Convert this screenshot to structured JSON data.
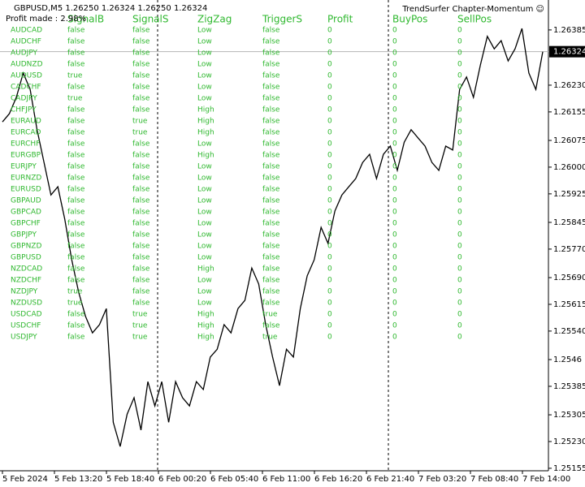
{
  "header": {
    "symbol_line": "GBPUSD,M5  1.26250 1.26324 1.26250 1.26324",
    "profit_line": "Profit made : 2.98%",
    "indicator": "TrendSurfer Chapter-Momentum ☺"
  },
  "table": {
    "columns": [
      "SignalB",
      "SignalS",
      "ZigZag",
      "TriggerS",
      "Profit",
      "BuyPos",
      "SellPos"
    ],
    "rows": [
      [
        "AUDCAD",
        "false",
        "false",
        "Low",
        "false",
        0,
        0,
        0
      ],
      [
        "AUDCHF",
        "false",
        "false",
        "Low",
        "false",
        0,
        0,
        0
      ],
      [
        "AUDJPY",
        "false",
        "false",
        "Low",
        "false",
        0,
        0,
        0
      ],
      [
        "AUDNZD",
        "false",
        "false",
        "Low",
        "false",
        0,
        0,
        0
      ],
      [
        "AUDUSD",
        "true",
        "false",
        "Low",
        "false",
        0,
        0,
        0
      ],
      [
        "CADCHF",
        "false",
        "false",
        "Low",
        "false",
        0,
        0,
        0
      ],
      [
        "CADJPY",
        "true",
        "false",
        "Low",
        "false",
        0,
        0,
        0
      ],
      [
        "CHFJPY",
        "false",
        "false",
        "High",
        "false",
        0,
        0,
        0
      ],
      [
        "EURAUD",
        "false",
        "true",
        "High",
        "false",
        0,
        0,
        0
      ],
      [
        "EURCAD",
        "false",
        "true",
        "High",
        "false",
        0,
        0,
        0
      ],
      [
        "EURCHF",
        "false",
        "false",
        "Low",
        "false",
        0,
        0,
        0
      ],
      [
        "EURGBP",
        "false",
        "false",
        "High",
        "false",
        0,
        0,
        0
      ],
      [
        "EURJPY",
        "false",
        "false",
        "Low",
        "false",
        0,
        0,
        0
      ],
      [
        "EURNZD",
        "false",
        "false",
        "Low",
        "false",
        0,
        0,
        0
      ],
      [
        "EURUSD",
        "false",
        "false",
        "Low",
        "false",
        0,
        0,
        0
      ],
      [
        "GBPAUD",
        "false",
        "false",
        "Low",
        "false",
        0,
        0,
        0
      ],
      [
        "GBPCAD",
        "false",
        "false",
        "Low",
        "false",
        0,
        0,
        0
      ],
      [
        "GBPCHF",
        "false",
        "false",
        "Low",
        "false",
        0,
        0,
        0
      ],
      [
        "GBPJPY",
        "false",
        "false",
        "Low",
        "false",
        0,
        0,
        0
      ],
      [
        "GBPNZD",
        "false",
        "false",
        "Low",
        "false",
        0,
        0,
        0
      ],
      [
        "GBPUSD",
        "false",
        "false",
        "Low",
        "false",
        0,
        0,
        0
      ],
      [
        "NZDCAD",
        "false",
        "false",
        "High",
        "false",
        0,
        0,
        0
      ],
      [
        "NZDCHF",
        "false",
        "false",
        "Low",
        "false",
        0,
        0,
        0
      ],
      [
        "NZDJPY",
        "true",
        "false",
        "Low",
        "false",
        0,
        0,
        0
      ],
      [
        "NZDUSD",
        "true",
        "false",
        "Low",
        "false",
        0,
        0,
        0
      ],
      [
        "USDCAD",
        "false",
        "true",
        "High",
        "true",
        0,
        0,
        0
      ],
      [
        "USDCHF",
        "false",
        "true",
        "High",
        "false",
        0,
        0,
        0
      ],
      [
        "USDJPY",
        "false",
        "true",
        "High",
        "true",
        0,
        0,
        0
      ]
    ]
  },
  "chart": {
    "type": "line",
    "color": "#000000",
    "x_labels": [
      "5 Feb 2024",
      "5 Feb 13:20",
      "5 Feb 18:40",
      "6 Feb 00:20",
      "6 Feb 05:40",
      "6 Feb 11:00",
      "6 Feb 16:20",
      "6 Feb 21:40",
      "7 Feb 03:20",
      "7 Feb 08:40",
      "7 Feb 14:00"
    ],
    "ylim": [
      1.25148,
      1.26469
    ],
    "yticks": [
      1.26385,
      1.26155,
      1.26075,
      1.25925,
      1.25845,
      1.25615,
      1.2546,
      1.25385,
      1.25305,
      1.25155,
      {
        "value": 1.2623,
        "label": "1.26230"
      },
      {
        "value": 1.26,
        "label": "1.26000"
      },
      {
        "value": 1.2577,
        "label": "1.25770"
      },
      {
        "value": 1.2569,
        "label": "1.25690"
      },
      {
        "value": 1.2554,
        "label": "1.25540"
      },
      {
        "value": 1.2523,
        "label": "1.25230"
      }
    ],
    "current_price": 1.26324,
    "values": [
      1.26127,
      1.2615,
      1.26196,
      1.26264,
      1.26218,
      1.26105,
      1.26013,
      1.25922,
      1.25945,
      1.25854,
      1.2574,
      1.25649,
      1.25581,
      1.25535,
      1.25558,
      1.25603,
      1.25284,
      1.25216,
      1.25307,
      1.25353,
      1.25262,
      1.25398,
      1.2533,
      1.25398,
      1.25284,
      1.25398,
      1.25353,
      1.2533,
      1.25398,
      1.25376,
      1.25467,
      1.25489,
      1.25558,
      1.25535,
      1.25603,
      1.25626,
      1.25717,
      1.25672,
      1.25558,
      1.25467,
      1.25387,
      1.25489,
      1.25467,
      1.25603,
      1.25695,
      1.2574,
      1.25831,
      1.25786,
      1.25877,
      1.25922,
      1.25945,
      1.25968,
      1.26013,
      1.26036,
      1.25968,
      1.26036,
      1.26059,
      1.25991,
      1.2607,
      1.26105,
      1.26082,
      1.26059,
      1.26013,
      1.25991,
      1.26059,
      1.26048,
      1.26218,
      1.26253,
      1.26196,
      1.26287,
      1.26367,
      1.26332,
      1.26355,
      1.26298,
      1.26332,
      1.26389,
      1.26264,
      1.26218,
      1.26324
    ]
  }
}
